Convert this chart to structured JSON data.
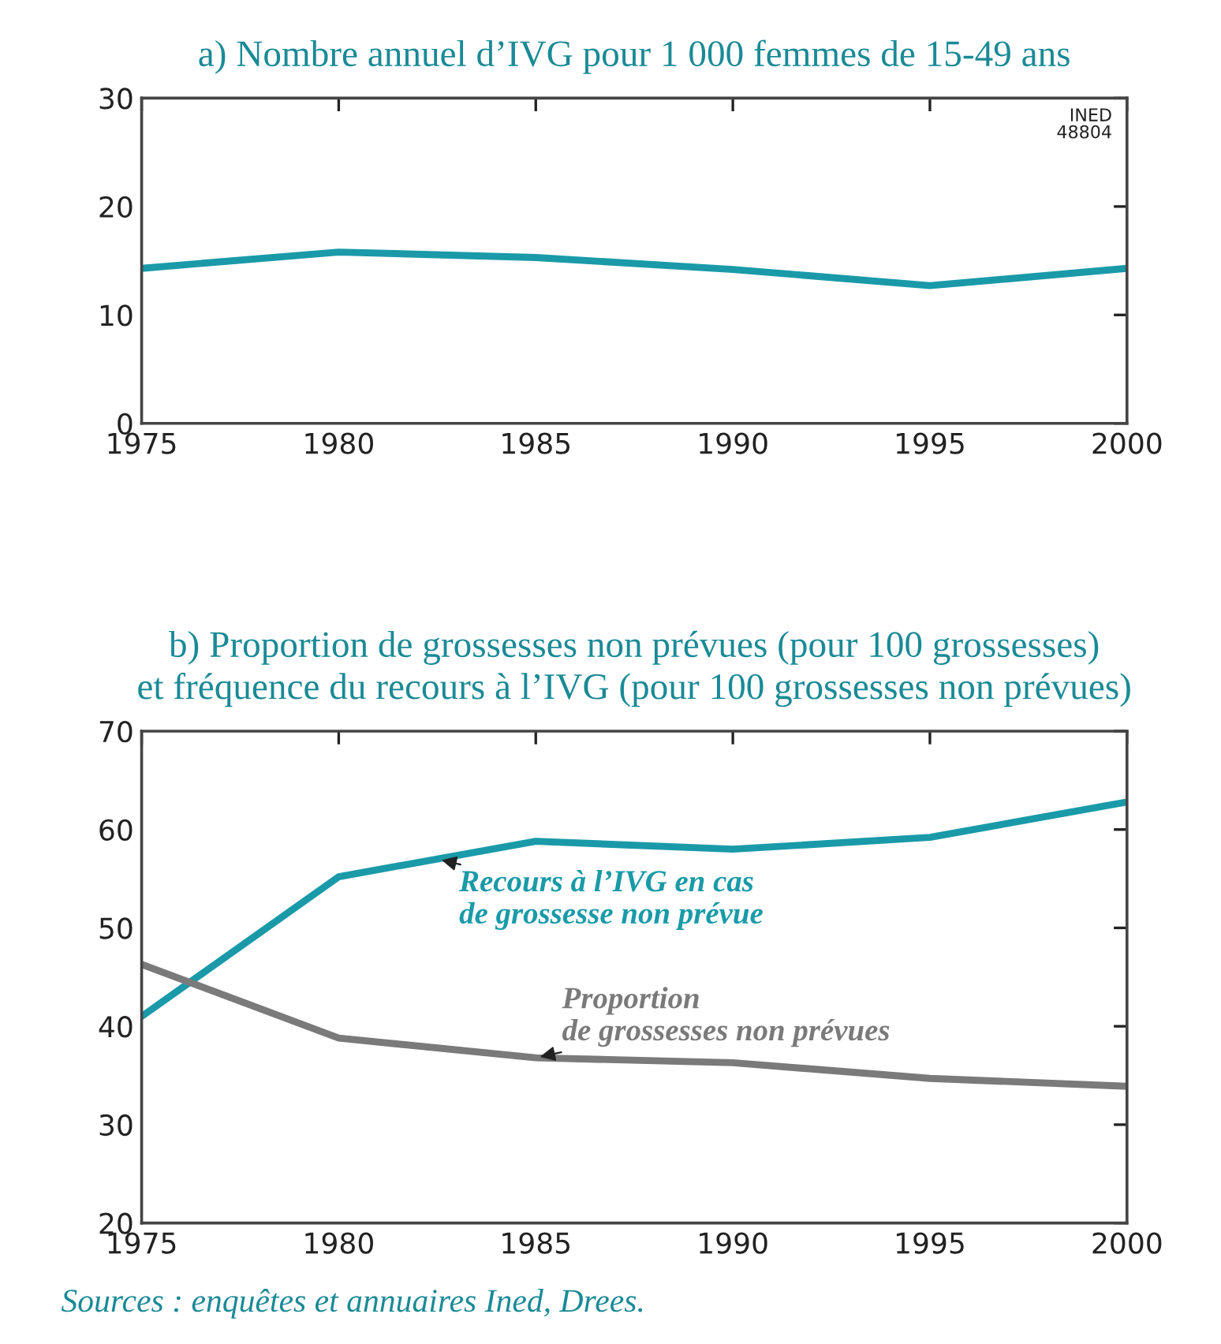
{
  "chart_data": [
    {
      "type": "line",
      "title": "a) Nombre annuel d’IVG pour 1 000 femmes de 15-49 ans",
      "x": [
        1975,
        1980,
        1985,
        1990,
        1995,
        2000
      ],
      "series": [
        {
          "color": "#1a9aa8",
          "values": [
            14.3,
            15.8,
            15.3,
            14.2,
            12.7,
            14.3
          ]
        }
      ],
      "xlim": [
        1975,
        2000
      ],
      "xticks": [
        1975,
        1980,
        1985,
        1990,
        1995,
        2000
      ],
      "ylim": [
        0,
        30
      ],
      "yticks": [
        0,
        10,
        20,
        30
      ],
      "grid": false,
      "legend": false,
      "marker": "none",
      "line_style": "solid",
      "annotations": [
        "INED\n48804"
      ]
    },
    {
      "type": "line",
      "title": "b) Proportion de grossesses non prévues (pour 100 grossesses)\net fréquence du recours à l’IVG (pour 100 grossesses non prévues)",
      "x": [
        1975,
        1980,
        1985,
        1990,
        1995,
        2000
      ],
      "series": [
        {
          "name": "Recours à l’IVG en cas\nde grossesse non prévue",
          "color": "#1a9aa8",
          "values": [
            41.0,
            55.2,
            58.8,
            58.0,
            59.2,
            62.8
          ]
        },
        {
          "name": "Proportion\nde grossesses non prévues",
          "color": "#7a7a7a",
          "values": [
            46.3,
            38.8,
            36.8,
            36.3,
            34.7,
            33.9
          ]
        }
      ],
      "xlim": [
        1975,
        2000
      ],
      "xticks": [
        1975,
        1980,
        1985,
        1990,
        1995,
        2000
      ],
      "ylim": [
        20,
        70
      ],
      "yticks": [
        20,
        30,
        40,
        50,
        60,
        70
      ],
      "grid": false,
      "legend": false,
      "marker": "none",
      "line_style": "solid",
      "annotations": [
        "Sources : enquêtes et annuaires Ined, Drees."
      ]
    }
  ]
}
